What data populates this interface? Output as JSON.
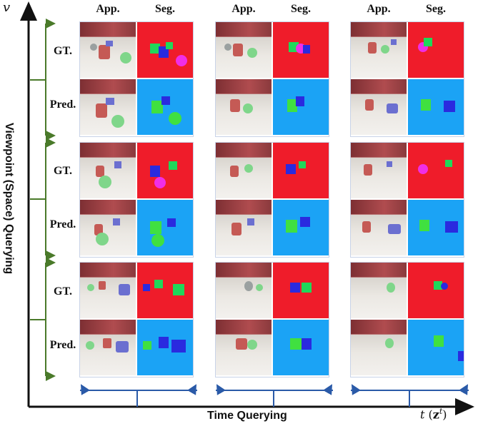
{
  "axes": {
    "y_symbol": "v",
    "x_title": "Time Querying",
    "y_title": "Viewpoint (Space) Querying",
    "x_symbol_t": "t",
    "x_symbol_z": "z",
    "x_symbol_sup": "t"
  },
  "columns": {
    "app_label": "App.",
    "seg_label": "Seg."
  },
  "rows": {
    "gt_label": "GT.",
    "pred_label": "Pred."
  },
  "colors": {
    "axis": "#111111",
    "bracket_green": "#4a7a2a",
    "bracket_blue": "#2a5aa8",
    "seg_gt_background": "#ef1c2a",
    "seg_pred_background": "#1ba3f5"
  },
  "icons": {
    "y_arrow": "arrow-up-icon",
    "x_arrow": "arrow-right-icon"
  }
}
